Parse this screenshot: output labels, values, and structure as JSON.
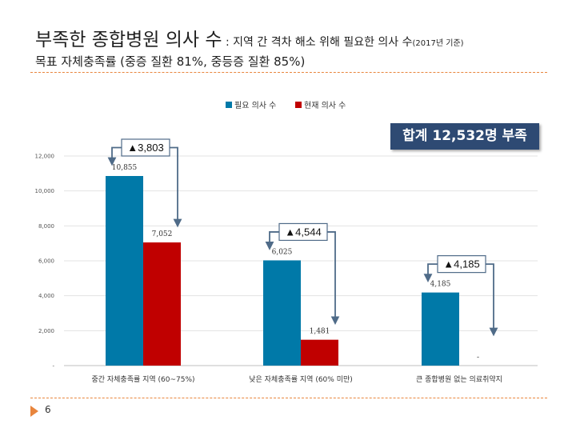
{
  "header": {
    "title_main": "부족한 종합병원 의사 수",
    "title_sep": " : ",
    "title_detail": "지역 간 격차 해소 위해 필요한 의사 수",
    "title_note": "(2017년 기준)",
    "subtitle": "목표 자체충족률 (중증 질환 81%, 중등증 질환 85%)"
  },
  "summary_box": "합계 12,532명 부족",
  "page_number": "6",
  "colors": {
    "required": "#0079a8",
    "current": "#c00000",
    "accent": "#e8853d",
    "box": "#2e4a73"
  },
  "chart_data": {
    "type": "bar",
    "categories": [
      "중간 자체충족률 지역 (60~75%)",
      "낮은 자체충족률 지역 (60% 미만)",
      "큰 종합병원 없는 의료취약지"
    ],
    "series": [
      {
        "name": "필요 의사 수",
        "values": [
          10855,
          6025,
          4185
        ],
        "labels": [
          "10,855",
          "6,025",
          "4,185"
        ]
      },
      {
        "name": "현재 의사 수",
        "values": [
          7052,
          1481,
          0
        ],
        "labels": [
          "7,052",
          "1,481",
          "-"
        ]
      }
    ],
    "gaps": [
      "▲3,803",
      "▲4,544",
      "▲4,185"
    ],
    "yticks": [
      0,
      2000,
      4000,
      6000,
      8000,
      10000,
      12000
    ],
    "ytick_labels": [
      "-",
      "2,000",
      "4,000",
      "6,000",
      "8,000",
      "10,000",
      "12,000"
    ],
    "ylim": [
      0,
      12000
    ],
    "grid": true,
    "legend_position": "top"
  }
}
